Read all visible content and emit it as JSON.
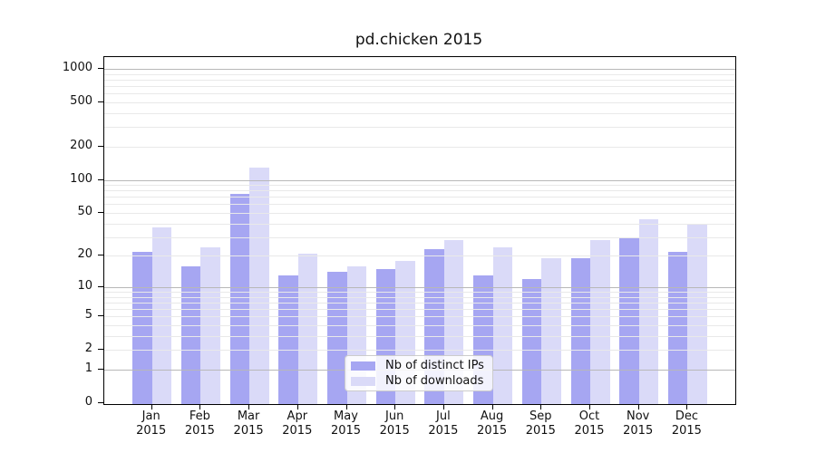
{
  "chart_data": {
    "type": "bar",
    "title": "pd.chicken 2015",
    "xlabel": "",
    "ylabel": "",
    "yscale": "log1p",
    "ylim": [
      0,
      1275
    ],
    "ytick_labels": [
      0,
      1,
      2,
      5,
      10,
      20,
      50,
      100,
      200,
      500,
      1000
    ],
    "grid": "both",
    "legend_position": "lower-center",
    "year_label": "2015",
    "categories": [
      "Jan",
      "Feb",
      "Mar",
      "Apr",
      "May",
      "Jun",
      "Jul",
      "Aug",
      "Sep",
      "Oct",
      "Nov",
      "Dec"
    ],
    "series": [
      {
        "name": "Nb of distinct IPs",
        "color": "#a6a6f2",
        "values": [
          22,
          16,
          75,
          13,
          14,
          15,
          23,
          13,
          12,
          19,
          30,
          22
        ]
      },
      {
        "name": "Nb of downloads",
        "color": "#dadaf8",
        "values": [
          37,
          24,
          130,
          21,
          16,
          18,
          28,
          24,
          19,
          28,
          44,
          40
        ]
      }
    ],
    "colors": {
      "major_grid": "#b8b8b8",
      "minor_grid": "#e9e9e9",
      "spine": "#000000",
      "text": "#111111",
      "background": "#ffffff"
    }
  }
}
